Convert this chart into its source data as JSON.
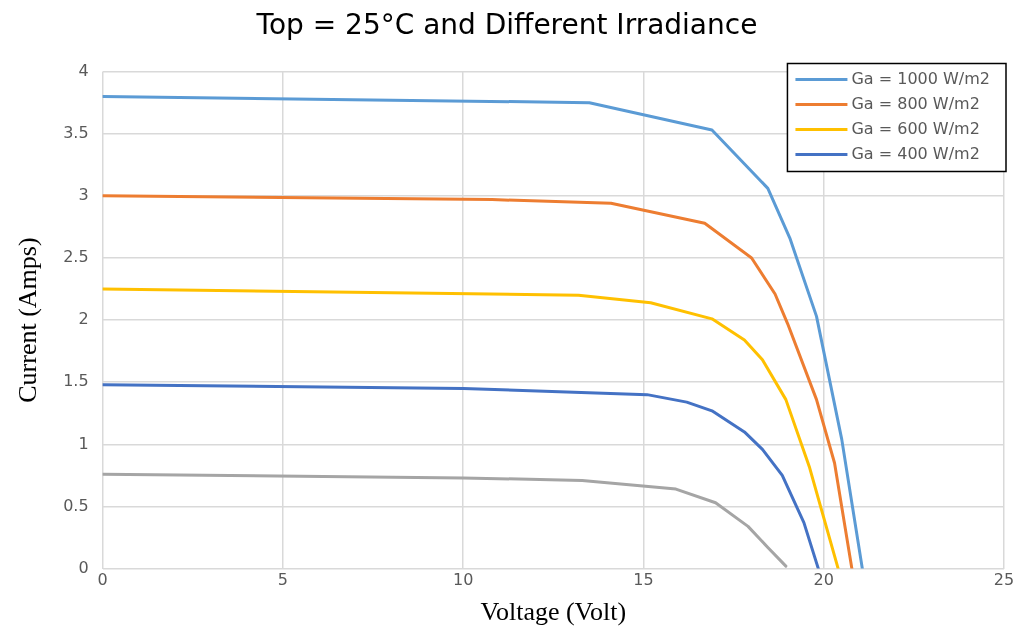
{
  "chart_data": {
    "type": "line",
    "title": "Top = 25°C and Different Irradiance",
    "xlabel": "Voltage (Volt)",
    "ylabel": "Current (Amps)",
    "xlim": [
      0,
      25
    ],
    "xticks": [
      0,
      5,
      10,
      15,
      20,
      25
    ],
    "ylim": [
      0,
      4
    ],
    "yticks": [
      0,
      0.5,
      1,
      1.5,
      2,
      2.5,
      3,
      3.5,
      4
    ],
    "grid": true,
    "legend": "top right",
    "marker": "none",
    "line_style": "solid",
    "series": [
      {
        "name": "Ga = 1000 W/m2",
        "color": "#5b9bd5",
        "x": [
          0,
          13.5,
          16.9,
          18.45,
          19.06,
          19.8,
          20.5,
          21.07
        ],
        "values": [
          3.8,
          3.75,
          3.53,
          3.06,
          2.66,
          2.03,
          1.04,
          0
        ]
      },
      {
        "name": "Ga = 800 W/m2",
        "color": "#ed7d31",
        "x": [
          0,
          10.8,
          14.1,
          16.7,
          18.0,
          18.65,
          19.0,
          19.8,
          20.3,
          20.78
        ],
        "values": [
          3.0,
          2.97,
          2.94,
          2.78,
          2.5,
          2.21,
          1.97,
          1.36,
          0.85,
          0
        ]
      },
      {
        "name": "Ga = 600 W/m2",
        "color": "#ffc000",
        "x": [
          0,
          13.2,
          15.2,
          16.9,
          17.8,
          18.3,
          18.95,
          19.6,
          20.4
        ],
        "values": [
          2.25,
          2.2,
          2.14,
          2.01,
          1.84,
          1.68,
          1.36,
          0.82,
          0
        ]
      },
      {
        "name": "Ga = 400 W/m2",
        "color": "#4472c4",
        "x": [
          0,
          10,
          15.1,
          16.2,
          16.9,
          17.8,
          18.3,
          18.85,
          19.45,
          19.85
        ],
        "values": [
          1.48,
          1.45,
          1.4,
          1.34,
          1.27,
          1.1,
          0.96,
          0.75,
          0.37,
          0
        ]
      },
      {
        "color": "#a5a5a5",
        "x": [
          0,
          10,
          13.3,
          15.9,
          17.0,
          17.9,
          18.45,
          18.95
        ],
        "values": [
          0.76,
          0.73,
          0.71,
          0.64,
          0.53,
          0.34,
          0.17,
          0.02
        ]
      }
    ]
  }
}
